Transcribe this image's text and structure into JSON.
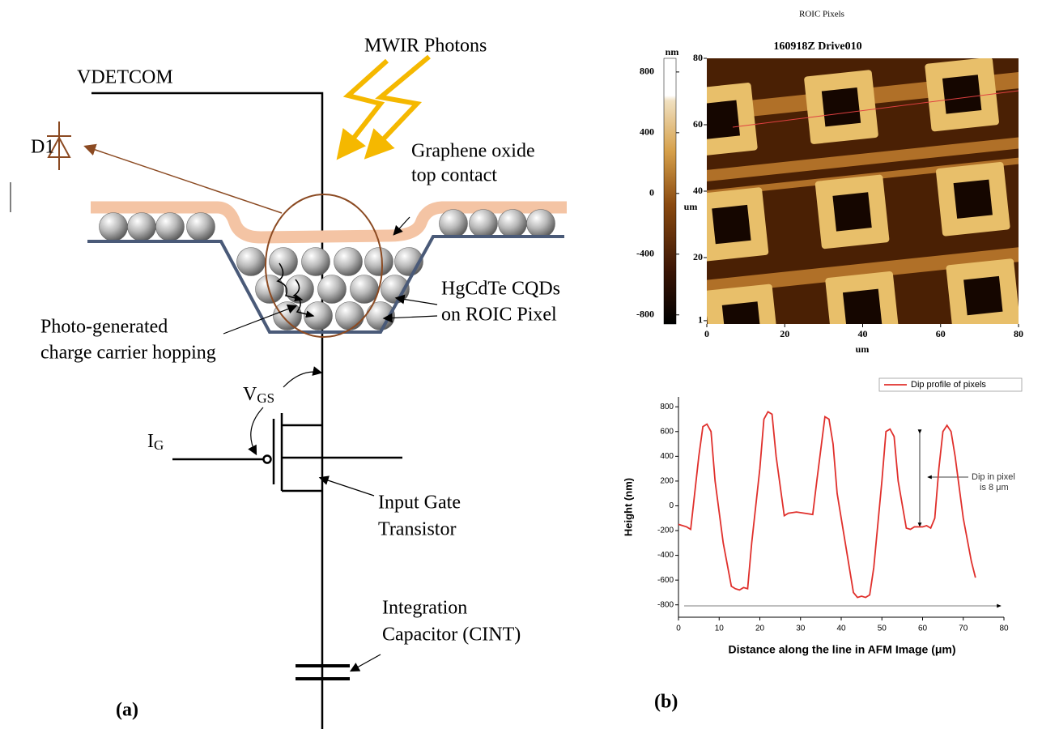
{
  "figure": {
    "panel_a": {
      "label": "(a)",
      "photons": "MWIR Photons",
      "supply": "VDETCOM",
      "diode": "D1",
      "top_contact": [
        "Graphene oxide",
        "top contact"
      ],
      "cqds": [
        "HgCdTe CQDs",
        "on ROIC Pixel"
      ],
      "hopping": [
        "Photo-generated",
        "charge carrier hopping"
      ],
      "vgs": {
        "main": "V",
        "sub": "GS"
      },
      "ig": {
        "main": "I",
        "sub": "G"
      },
      "transistor": [
        "Input Gate",
        "Transistor"
      ],
      "capacitor": [
        "Integration",
        "Capacitor (CINT)"
      ]
    },
    "panel_b": {
      "label": "(b)",
      "header": "ROIC Pixels",
      "afm": {
        "title": "160918Z Drive010",
        "colorbar_unit": "nm",
        "colorbar_lim": [
          -860,
          890
        ],
        "colorbar_ticks": [
          800,
          400,
          0,
          -400,
          -800
        ],
        "y_label": "um",
        "ylim": [
          0,
          80
        ],
        "yticks": [
          1,
          20,
          40,
          60,
          80
        ],
        "x_label": "um",
        "xlim": [
          0,
          80
        ],
        "xticks": [
          0,
          20,
          40,
          60,
          80
        ]
      }
    }
  },
  "chart_data": {
    "type": "line",
    "x_label": "Distance along the line in AFM Image (μm)",
    "y_label": "Height (nm)",
    "annotation": [
      "Dip in pixel",
      "is 8 μm"
    ],
    "x": [
      0,
      2,
      3,
      5,
      6,
      7,
      8,
      9,
      11,
      13,
      14,
      15,
      16,
      17,
      18,
      20,
      21,
      22,
      23,
      24,
      26,
      27,
      29,
      31,
      33,
      34,
      36,
      37,
      38,
      39,
      41,
      43,
      44,
      45,
      46,
      47,
      48,
      50,
      51,
      52,
      53,
      54,
      56,
      57,
      58,
      60,
      61,
      62,
      63,
      64,
      65,
      66,
      67,
      68,
      70,
      72,
      73
    ],
    "series": [
      {
        "name": "Dip profile of pixels",
        "color": "#e0302c",
        "values": [
          -150,
          -170,
          -190,
          400,
          640,
          660,
          600,
          200,
          -300,
          -650,
          -670,
          -680,
          -660,
          -670,
          -300,
          300,
          700,
          760,
          740,
          400,
          -80,
          -60,
          -50,
          -60,
          -70,
          200,
          720,
          700,
          500,
          100,
          -300,
          -700,
          -740,
          -730,
          -740,
          -720,
          -500,
          200,
          600,
          620,
          560,
          200,
          -180,
          -190,
          -170,
          -170,
          -160,
          -180,
          -100,
          300,
          600,
          650,
          600,
          400,
          -100,
          -450,
          -580
        ]
      }
    ],
    "xlim": [
      0,
      80
    ],
    "xticks": [
      0,
      10,
      20,
      30,
      40,
      50,
      60,
      70,
      80
    ],
    "ylim": [
      -900,
      880
    ],
    "yticks": [
      -800,
      -600,
      -400,
      -200,
      0,
      200,
      400,
      600,
      800
    ],
    "legend": "upper right",
    "grid": false
  }
}
